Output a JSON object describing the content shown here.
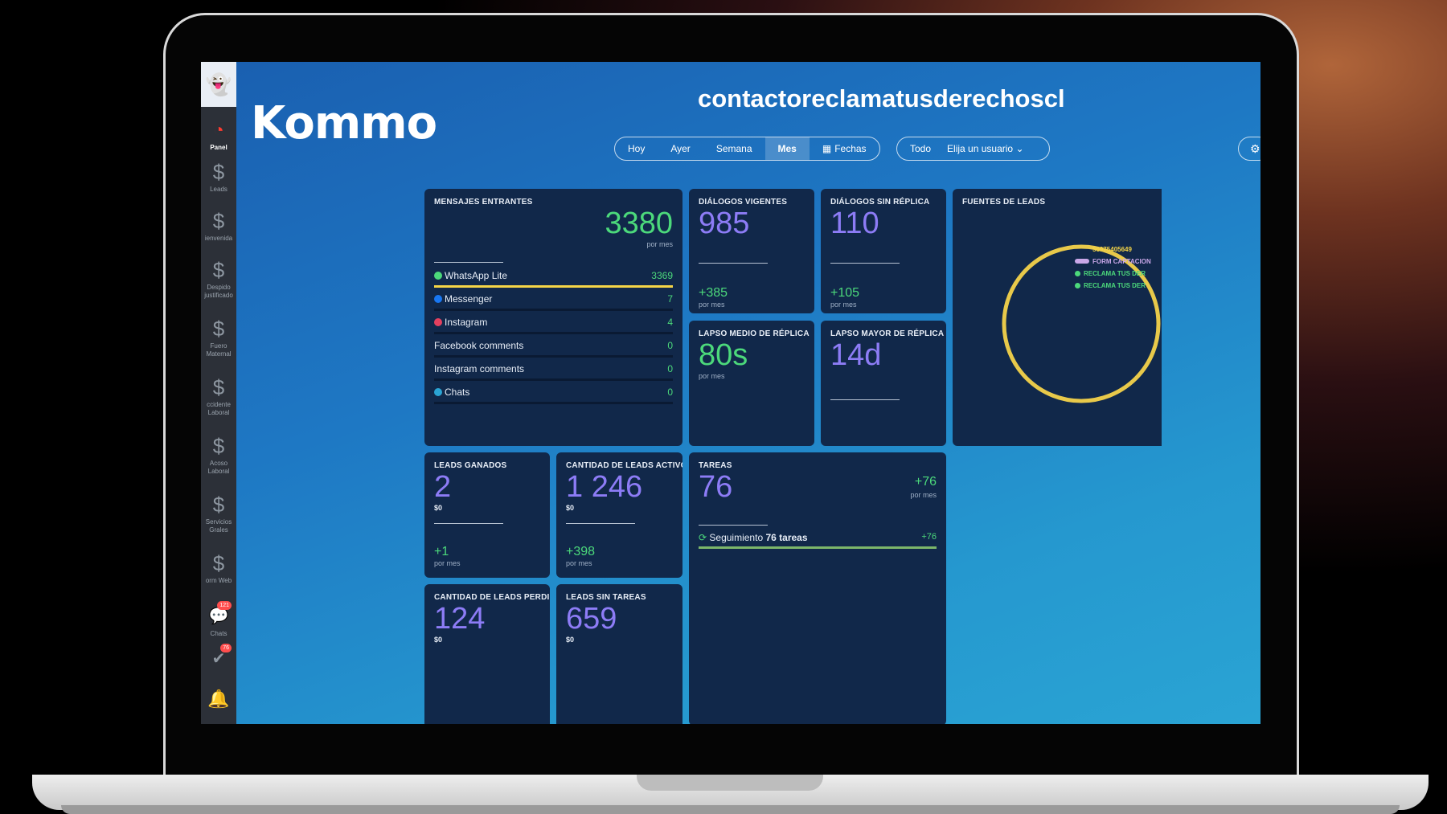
{
  "sidebar": {
    "avatar_icon": "ghost-avatar",
    "items": [
      {
        "label": "Panel",
        "icon": "speedometer-icon"
      },
      {
        "label": "Leads",
        "icon": "dollar-icon"
      },
      {
        "label": "ienvenida",
        "icon": "dollar-icon"
      },
      {
        "label": "Despido\njustificado",
        "icon": "dollar-icon"
      },
      {
        "label": "Fuero\nMaternal",
        "icon": "dollar-icon"
      },
      {
        "label": "ccidente\nLaboral",
        "icon": "dollar-icon"
      },
      {
        "label": "Acoso\nLaboral",
        "icon": "dollar-icon"
      },
      {
        "label": "Servicios\nGrales",
        "icon": "dollar-icon"
      },
      {
        "label": "orm Web",
        "icon": "dollar-icon"
      },
      {
        "label": "Chats",
        "icon": "chat-icon",
        "badge": "121"
      },
      {
        "label": "",
        "icon": "check-icon",
        "badge": "76"
      },
      {
        "label": "",
        "icon": "bell-icon"
      }
    ]
  },
  "header": {
    "logo": "Kommo",
    "account": "contactoreclamatusderechoscl",
    "periods": [
      "Hoy",
      "Ayer",
      "Semana",
      "Mes",
      "Fechas"
    ],
    "active_period": "Mes",
    "all_label": "Todo",
    "user_select": "Elija un usuario"
  },
  "mensajes": {
    "title": "MENSAJES ENTRANTES",
    "value": "3380",
    "unit": "por mes",
    "channels": [
      {
        "name": "WhatsApp Lite",
        "value": "3369",
        "fill": 1.0,
        "color": "#4cd97b"
      },
      {
        "name": "Messenger",
        "value": "7",
        "fill": 0,
        "color": "#1877f2"
      },
      {
        "name": "Instagram",
        "value": "4",
        "fill": 0,
        "color": "#e4405f"
      },
      {
        "name": "Facebook comments",
        "value": "0",
        "fill": 0,
        "color": ""
      },
      {
        "name": "Instagram comments",
        "value": "0",
        "fill": 0,
        "color": ""
      },
      {
        "name": "Chats",
        "value": "0",
        "fill": 0,
        "color": "#2aa4d4"
      }
    ]
  },
  "dialogos_vigentes": {
    "title": "DIÁLOGOS VIGENTES",
    "value": "985",
    "delta": "+385",
    "unit": "por mes"
  },
  "dialogos_sin_replica": {
    "title": "DIÁLOGOS SIN RÉPLICA",
    "value": "110",
    "delta": "+105",
    "unit": "por mes"
  },
  "lapso_medio": {
    "title": "LAPSO MEDIO DE RÉPLICA",
    "value": "80s",
    "unit": "por mes"
  },
  "lapso_mayor": {
    "title": "LAPSO MAYOR DE RÉPLICA",
    "value": "14d"
  },
  "fuentes": {
    "title": "FUENTES DE LEADS",
    "legend": [
      {
        "label": "56975405649",
        "color": "#f5d547"
      },
      {
        "label": "FORM CAPTACION",
        "color": "#c9a7e8"
      },
      {
        "label": "RECLAMA TUS DER",
        "color": "#4cd97b"
      },
      {
        "label": "RECLAMA TUS DER",
        "color": "#4cd97b"
      }
    ]
  },
  "leads_ganados": {
    "title": "LEADS GANADOS",
    "value": "2",
    "money": "$0",
    "delta": "+1",
    "unit": "por mes"
  },
  "leads_activos": {
    "title": "CANTIDAD DE LEADS ACTIVOS",
    "value": "1 246",
    "money": "$0",
    "delta": "+398",
    "unit": "por mes"
  },
  "tareas": {
    "title": "TAREAS",
    "value": "76",
    "delta": "+76",
    "unit": "por mes",
    "task_label": "Seguimiento",
    "task_count": "76 tareas",
    "task_delta": "+76"
  },
  "leads_perdidos": {
    "title": "CANTIDAD DE LEADS PERDIDOS",
    "value": "124",
    "money": "$0"
  },
  "leads_sin_tareas": {
    "title": "LEADS SIN TAREAS",
    "value": "659",
    "money": "$0"
  }
}
